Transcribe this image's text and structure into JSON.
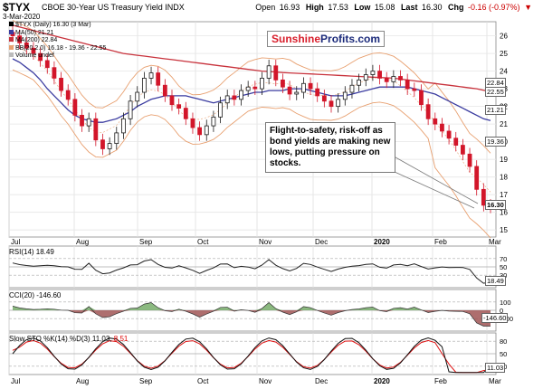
{
  "header": {
    "symbol": "$TYX",
    "description": "CBOE 30-Year US Treasury Yield INDX",
    "date": "3-Mar-2020",
    "open_label": "Open",
    "open": "16.93",
    "high_label": "High",
    "high": "17.53",
    "low_label": "Low",
    "low": "15.08",
    "last_label": "Last",
    "last": "16.30",
    "chg_label": "Chg",
    "chg": "-0.16 (-0.97%)",
    "chg_icon": "down-triangle-icon"
  },
  "legend": {
    "line1": "$TYX (Daily) 16.30 (3 Mar)",
    "line2": "MA(50) 21.21",
    "line3": "MA(200) 22.84",
    "line4": "BB(20,2.0) 16.18 - 19.36 - 22.55",
    "line5": "Volume undef"
  },
  "brand": {
    "part1": "Sunshine",
    "part2": "Profits.com"
  },
  "annotation": "Flight-to-safety, risk-off as bond yields are making new lows, putting pressure on stocks.",
  "indicators": {
    "rsi_label": "RSI(14) 18.49",
    "cci_label": "CCI(20) -146.60",
    "sto_label_prefix": "Slow STO %K(14) %D(3) 11.03,",
    "sto_label_d": "8.51"
  },
  "colors": {
    "up": "#1a1a1a",
    "down": "#d2162a",
    "ma50": "#3b3ca0",
    "ma200": "#c8323c",
    "bb": "#e8a070",
    "rsi": "#222222",
    "cci_pos": "#6ea860",
    "cci_neg": "#9a4a4a",
    "sto_k": "#111111",
    "sto_d": "#dd1111"
  },
  "chart_data": {
    "type": "line",
    "title": "$TYX CBOE 30-Year US Treasury Yield INDX",
    "x_labels": [
      "Jul",
      "Aug",
      "Sep",
      "Oct",
      "Nov",
      "Dec",
      "2020",
      "Feb",
      "Mar"
    ],
    "y_ticks": [
      15,
      16,
      17,
      18,
      19,
      20,
      21,
      22,
      23,
      24,
      25,
      26
    ],
    "ylim": [
      14.6,
      26.8
    ],
    "right_labels": [
      "22.84",
      "22.55",
      "21.21",
      "19.36",
      "16.30"
    ],
    "series": [
      {
        "name": "$TYX (Daily)",
        "values": [
          26.0,
          25.6,
          25.3,
          25.0,
          24.6,
          24.2,
          23.6,
          22.9,
          22.4,
          21.5,
          20.9,
          21.3,
          20.1,
          19.6,
          19.9,
          20.5,
          21.3,
          22.3,
          22.8,
          23.6,
          23.9,
          23.2,
          22.6,
          22.1,
          21.9,
          21.3,
          20.8,
          20.4,
          20.9,
          21.4,
          22.2,
          22.6,
          22.4,
          22.9,
          23.1,
          23.0,
          23.6,
          24.3,
          23.5,
          23.1,
          22.7,
          22.8,
          23.3,
          23.0,
          22.6,
          22.3,
          22.0,
          22.4,
          22.8,
          23.2,
          23.5,
          23.8,
          24.0,
          23.6,
          23.4,
          23.7,
          23.5,
          23.0,
          22.9,
          22.1,
          21.3,
          21.0,
          20.6,
          20.2,
          19.8,
          19.3,
          18.6,
          17.3,
          16.4,
          16.3
        ]
      },
      {
        "name": "MA(50)",
        "values": [
          24.7,
          24.5,
          24.2,
          23.9,
          23.5,
          23.0,
          22.6,
          22.2,
          21.8,
          21.5,
          21.3,
          21.2,
          21.1,
          21.1,
          21.2,
          21.3,
          21.5,
          21.7,
          22.0,
          22.2,
          22.4,
          22.5,
          22.6,
          22.6,
          22.6,
          22.6,
          22.5,
          22.4,
          22.3,
          22.2,
          22.3,
          22.4,
          22.5,
          22.6,
          22.7,
          22.8,
          22.8,
          22.9,
          22.9,
          22.9,
          23.0,
          23.0,
          23.0,
          22.9,
          22.8,
          22.7,
          22.6,
          22.6,
          22.6,
          22.7,
          22.8,
          22.9,
          23.0,
          23.1,
          23.1,
          23.1,
          23.1,
          23.1,
          23.0,
          22.9,
          22.8,
          22.7,
          22.5,
          22.3,
          22.1,
          21.9,
          21.7,
          21.5,
          21.3,
          21.2
        ]
      },
      {
        "name": "MA(200)",
        "values": [
          26.6,
          26.5,
          26.4,
          26.3,
          26.2,
          26.1,
          26.0,
          25.9,
          25.8,
          25.7,
          25.6,
          25.5,
          25.4,
          25.3,
          25.2,
          25.1,
          25.0,
          24.95,
          24.9,
          24.85,
          24.8,
          24.75,
          24.7,
          24.65,
          24.6,
          24.55,
          24.5,
          24.45,
          24.4,
          24.35,
          24.3,
          24.25,
          24.2,
          24.15,
          24.1,
          24.05,
          24.0,
          23.98,
          23.95,
          23.92,
          23.9,
          23.88,
          23.86,
          23.84,
          23.82,
          23.8,
          23.78,
          23.76,
          23.74,
          23.72,
          23.7,
          23.68,
          23.66,
          23.64,
          23.62,
          23.6,
          23.55,
          23.5,
          23.45,
          23.4,
          23.35,
          23.3,
          23.25,
          23.2,
          23.15,
          23.1,
          23.05,
          23.0,
          22.92,
          22.84
        ]
      }
    ],
    "rsi": {
      "label": "RSI(14)",
      "last": "18.49",
      "ticks": [
        "70",
        "50",
        "30"
      ]
    },
    "cci": {
      "label": "CCI(20)",
      "last": "-146.60",
      "ticks": [
        "100",
        "0",
        "-100"
      ]
    },
    "stochastic": {
      "label": "Slow STO %K(14) %D(3)",
      "k_last": "11.03",
      "d_last": "8.51",
      "ticks": [
        "80",
        "50",
        "20"
      ]
    }
  }
}
